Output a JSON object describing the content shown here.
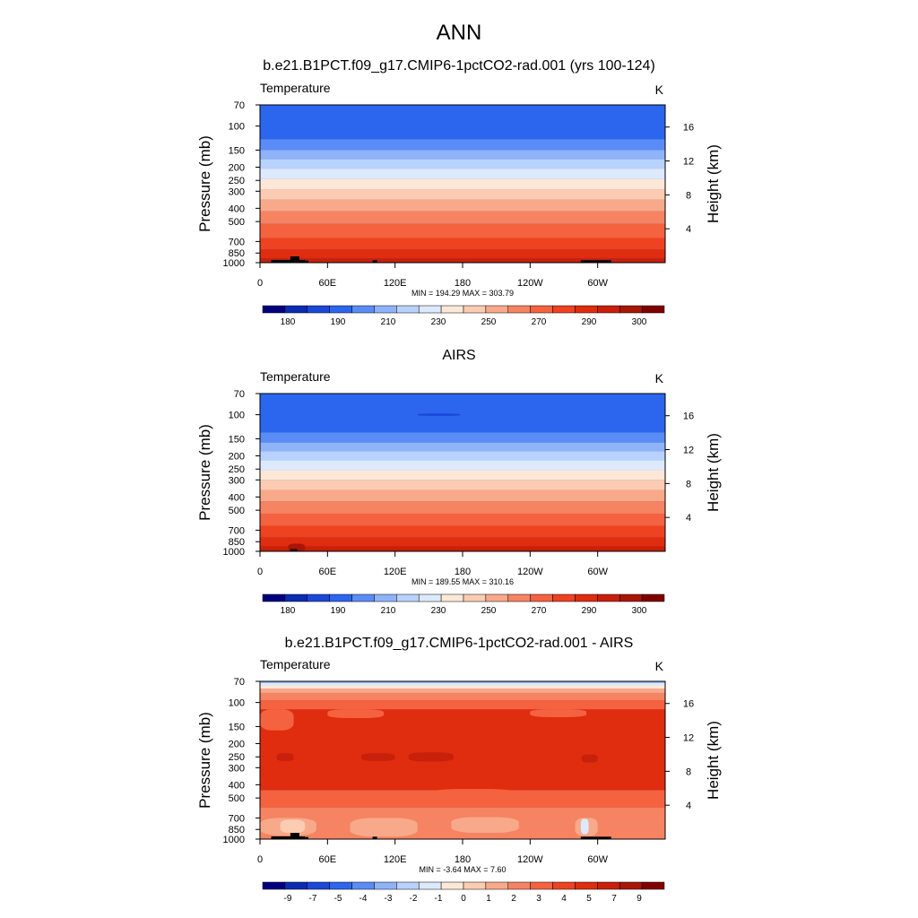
{
  "main_title": "ANN",
  "chart_data": [
    {
      "type": "heatmap",
      "title": "b.e21.B1PCT.f09_g17.CMIP6-1pctCO2-rad.001 (yrs 100-124)",
      "left_label": "Temperature",
      "units": "K",
      "ylabel": "Pressure (mb)",
      "y2label": "Height (km)",
      "stats": "MIN = 194.29  MAX = 303.79",
      "x_ticks": [
        {
          "lon": 0,
          "label": "0"
        },
        {
          "lon": 60,
          "label": "60E"
        },
        {
          "lon": 120,
          "label": "120E"
        },
        {
          "lon": 180,
          "label": "180"
        },
        {
          "lon": 240,
          "label": "120W"
        },
        {
          "lon": 300,
          "label": "60W"
        }
      ],
      "xlim": [
        0,
        360
      ],
      "p_ticks": [
        {
          "p": 70,
          "label": "70"
        },
        {
          "p": 100,
          "label": "100"
        },
        {
          "p": 150,
          "label": "150"
        },
        {
          "p": 200,
          "label": "200"
        },
        {
          "p": 250,
          "label": "250"
        },
        {
          "p": 300,
          "label": "300"
        },
        {
          "p": 400,
          "label": "400"
        },
        {
          "p": 500,
          "label": "500"
        },
        {
          "p": 700,
          "label": "700"
        },
        {
          "p": 850,
          "label": "850"
        },
        {
          "p": 1000,
          "label": "1000"
        }
      ],
      "h_ticks": [
        {
          "km": 4,
          "label": "4"
        },
        {
          "km": 8,
          "label": "8"
        },
        {
          "km": 12,
          "label": "12"
        },
        {
          "km": 16,
          "label": "16"
        }
      ],
      "plim": [
        70,
        1000
      ],
      "colors": [
        "#00007f",
        "#0a2cb3",
        "#1a48d8",
        "#2c66ee",
        "#5a8cf6",
        "#8fb3f9",
        "#b9d2fb",
        "#dde9fc",
        "#fde8d7",
        "#fbccb2",
        "#f8a98a",
        "#f68361",
        "#f4623f",
        "#ee4220",
        "#e02c0f",
        "#c8200a",
        "#a81606",
        "#800000"
      ],
      "cbar_labels": [
        "180",
        "190",
        "210",
        "230",
        "250",
        "270",
        "290",
        "300"
      ],
      "bands": [
        {
          "p_top": 70,
          "p_bottom": 100,
          "color_index": 3
        },
        {
          "p_top": 100,
          "p_bottom": 125,
          "color_index": 3
        },
        {
          "p_top": 125,
          "p_bottom": 150,
          "color_index": 4
        },
        {
          "p_top": 150,
          "p_bottom": 175,
          "color_index": 5
        },
        {
          "p_top": 175,
          "p_bottom": 205,
          "color_index": 6
        },
        {
          "p_top": 205,
          "p_bottom": 245,
          "color_index": 7
        },
        {
          "p_top": 245,
          "p_bottom": 290,
          "color_index": 8
        },
        {
          "p_top": 290,
          "p_bottom": 345,
          "color_index": 9
        },
        {
          "p_top": 345,
          "p_bottom": 420,
          "color_index": 10
        },
        {
          "p_top": 420,
          "p_bottom": 520,
          "color_index": 11
        },
        {
          "p_top": 520,
          "p_bottom": 660,
          "color_index": 12
        },
        {
          "p_top": 660,
          "p_bottom": 800,
          "color_index": 13
        },
        {
          "p_top": 800,
          "p_bottom": 930,
          "color_index": 14
        },
        {
          "p_top": 930,
          "p_bottom": 1000,
          "color_index": 15
        }
      ],
      "patches": [
        {
          "lon0": 80,
          "lon1": 160,
          "p_top": 100,
          "p_bottom": 112,
          "color_index": 3
        }
      ],
      "topography": [
        {
          "lon0": 10,
          "lon1": 40,
          "p_top": 955
        },
        {
          "lon0": 27,
          "lon1": 35,
          "p_top": 900
        },
        {
          "lon0": 40,
          "lon1": 43,
          "p_top": 965
        },
        {
          "lon0": 100,
          "lon1": 104,
          "p_top": 960
        },
        {
          "lon0": 285,
          "lon1": 312,
          "p_top": 960
        }
      ]
    },
    {
      "type": "heatmap",
      "title": "AIRS",
      "left_label": "Temperature",
      "units": "K",
      "ylabel": "Pressure (mb)",
      "y2label": "Height (km)",
      "stats": "MIN = 189.55  MAX = 310.16",
      "x_ticks": [
        {
          "lon": 0,
          "label": "0"
        },
        {
          "lon": 60,
          "label": "60E"
        },
        {
          "lon": 120,
          "label": "120E"
        },
        {
          "lon": 180,
          "label": "180"
        },
        {
          "lon": 240,
          "label": "120W"
        },
        {
          "lon": 300,
          "label": "60W"
        }
      ],
      "xlim": [
        0,
        360
      ],
      "p_ticks": [
        {
          "p": 70,
          "label": "70"
        },
        {
          "p": 100,
          "label": "100"
        },
        {
          "p": 150,
          "label": "150"
        },
        {
          "p": 200,
          "label": "200"
        },
        {
          "p": 250,
          "label": "250"
        },
        {
          "p": 300,
          "label": "300"
        },
        {
          "p": 400,
          "label": "400"
        },
        {
          "p": 500,
          "label": "500"
        },
        {
          "p": 700,
          "label": "700"
        },
        {
          "p": 850,
          "label": "850"
        },
        {
          "p": 1000,
          "label": "1000"
        }
      ],
      "h_ticks": [
        {
          "km": 4,
          "label": "4"
        },
        {
          "km": 8,
          "label": "8"
        },
        {
          "km": 12,
          "label": "12"
        },
        {
          "km": 16,
          "label": "16"
        }
      ],
      "plim": [
        70,
        1000
      ],
      "colors": [
        "#00007f",
        "#0a2cb3",
        "#1a48d8",
        "#2c66ee",
        "#5a8cf6",
        "#8fb3f9",
        "#b9d2fb",
        "#dde9fc",
        "#fde8d7",
        "#fbccb2",
        "#f8a98a",
        "#f68361",
        "#f4623f",
        "#ee4220",
        "#e02c0f",
        "#c8200a",
        "#a81606",
        "#800000"
      ],
      "cbar_labels": [
        "180",
        "190",
        "210",
        "230",
        "250",
        "270",
        "290",
        "300"
      ],
      "bands": [
        {
          "p_top": 70,
          "p_bottom": 105,
          "color_index": 3
        },
        {
          "p_top": 105,
          "p_bottom": 135,
          "color_index": 3
        },
        {
          "p_top": 135,
          "p_bottom": 160,
          "color_index": 4
        },
        {
          "p_top": 160,
          "p_bottom": 185,
          "color_index": 5
        },
        {
          "p_top": 185,
          "p_bottom": 215,
          "color_index": 6
        },
        {
          "p_top": 215,
          "p_bottom": 255,
          "color_index": 7
        },
        {
          "p_top": 255,
          "p_bottom": 300,
          "color_index": 8
        },
        {
          "p_top": 300,
          "p_bottom": 355,
          "color_index": 9
        },
        {
          "p_top": 355,
          "p_bottom": 430,
          "color_index": 10
        },
        {
          "p_top": 430,
          "p_bottom": 530,
          "color_index": 11
        },
        {
          "p_top": 530,
          "p_bottom": 650,
          "color_index": 12
        },
        {
          "p_top": 650,
          "p_bottom": 790,
          "color_index": 13
        },
        {
          "p_top": 790,
          "p_bottom": 920,
          "color_index": 14
        },
        {
          "p_top": 920,
          "p_bottom": 1000,
          "color_index": 15
        }
      ],
      "patches": [
        {
          "lon0": 140,
          "lon1": 178,
          "p_top": 98,
          "p_bottom": 102,
          "color_index": 2
        },
        {
          "lon0": 25,
          "lon1": 40,
          "p_top": 880,
          "p_bottom": 1000,
          "color_index": 16
        }
      ],
      "topography": [
        {
          "lon0": 27,
          "lon1": 33,
          "p_top": 965
        }
      ]
    },
    {
      "type": "heatmap",
      "title": "b.e21.B1PCT.f09_g17.CMIP6-1pctCO2-rad.001 - AIRS",
      "left_label": "Temperature",
      "units": "K",
      "ylabel": "Pressure (mb)",
      "y2label": "Height (km)",
      "stats": "MIN =  -3.64  MAX =   7.60",
      "x_ticks": [
        {
          "lon": 0,
          "label": "0"
        },
        {
          "lon": 60,
          "label": "60E"
        },
        {
          "lon": 120,
          "label": "120E"
        },
        {
          "lon": 180,
          "label": "180"
        },
        {
          "lon": 240,
          "label": "120W"
        },
        {
          "lon": 300,
          "label": "60W"
        }
      ],
      "xlim": [
        0,
        360
      ],
      "p_ticks": [
        {
          "p": 70,
          "label": "70"
        },
        {
          "p": 100,
          "label": "100"
        },
        {
          "p": 150,
          "label": "150"
        },
        {
          "p": 200,
          "label": "200"
        },
        {
          "p": 250,
          "label": "250"
        },
        {
          "p": 300,
          "label": "300"
        },
        {
          "p": 400,
          "label": "400"
        },
        {
          "p": 500,
          "label": "500"
        },
        {
          "p": 700,
          "label": "700"
        },
        {
          "p": 850,
          "label": "850"
        },
        {
          "p": 1000,
          "label": "1000"
        }
      ],
      "h_ticks": [
        {
          "km": 4,
          "label": "4"
        },
        {
          "km": 8,
          "label": "8"
        },
        {
          "km": 12,
          "label": "12"
        },
        {
          "km": 16,
          "label": "16"
        }
      ],
      "plim": [
        70,
        1000
      ],
      "colors": [
        "#00007f",
        "#0a2cb3",
        "#1a48d8",
        "#2c66ee",
        "#5a8cf6",
        "#8fb3f9",
        "#b9d2fb",
        "#dde9fc",
        "#fde8d7",
        "#fbccb2",
        "#f8a98a",
        "#f68361",
        "#f4623f",
        "#ee4220",
        "#e02c0f",
        "#c8200a",
        "#a81606",
        "#800000"
      ],
      "cbar_labels": [
        "-9",
        "-7",
        "-5",
        "-4",
        "-3",
        "-2",
        "-1",
        "0",
        "1",
        "2",
        "3",
        "4",
        "5",
        "7",
        "9"
      ],
      "bands": [
        {
          "p_top": 70,
          "p_bottom": 72,
          "color_index": 5
        },
        {
          "p_top": 72,
          "p_bottom": 75,
          "color_index": 7
        },
        {
          "p_top": 75,
          "p_bottom": 79,
          "color_index": 8
        },
        {
          "p_top": 79,
          "p_bottom": 85,
          "color_index": 10
        },
        {
          "p_top": 85,
          "p_bottom": 96,
          "color_index": 11
        },
        {
          "p_top": 96,
          "p_bottom": 112,
          "color_index": 12
        },
        {
          "p_top": 112,
          "p_bottom": 440,
          "color_index": 14
        },
        {
          "p_top": 440,
          "p_bottom": 590,
          "color_index": 12
        },
        {
          "p_top": 590,
          "p_bottom": 760,
          "color_index": 11
        },
        {
          "p_top": 760,
          "p_bottom": 1000,
          "color_index": 11
        }
      ],
      "patches": [
        {
          "lon0": 0,
          "lon1": 30,
          "p_top": 112,
          "p_bottom": 160,
          "color_index": 12
        },
        {
          "lon0": 60,
          "lon1": 110,
          "p_top": 112,
          "p_bottom": 130,
          "color_index": 12
        },
        {
          "lon0": 240,
          "lon1": 290,
          "p_top": 112,
          "p_bottom": 128,
          "color_index": 12
        },
        {
          "lon0": 15,
          "lon1": 30,
          "p_top": 235,
          "p_bottom": 268,
          "color_index": 15
        },
        {
          "lon0": 90,
          "lon1": 120,
          "p_top": 235,
          "p_bottom": 268,
          "color_index": 15
        },
        {
          "lon0": 132,
          "lon1": 172,
          "p_top": 232,
          "p_bottom": 270,
          "color_index": 15
        },
        {
          "lon0": 286,
          "lon1": 300,
          "p_top": 240,
          "p_bottom": 275,
          "color_index": 15
        },
        {
          "lon0": 150,
          "lon1": 230,
          "p_top": 430,
          "p_bottom": 520,
          "color_index": 12
        },
        {
          "lon0": 80,
          "lon1": 140,
          "p_top": 700,
          "p_bottom": 960,
          "color_index": 10
        },
        {
          "lon0": 170,
          "lon1": 230,
          "p_top": 690,
          "p_bottom": 900,
          "color_index": 10
        },
        {
          "lon0": 0,
          "lon1": 50,
          "p_top": 700,
          "p_bottom": 940,
          "color_index": 10
        },
        {
          "lon0": 280,
          "lon1": 300,
          "p_top": 700,
          "p_bottom": 950,
          "color_index": 10
        },
        {
          "lon0": 18,
          "lon1": 40,
          "p_top": 720,
          "p_bottom": 900,
          "color_index": 9
        },
        {
          "lon0": 285,
          "lon1": 292,
          "p_top": 710,
          "p_bottom": 920,
          "color_index": 7
        }
      ],
      "topography": [
        {
          "lon0": 10,
          "lon1": 40,
          "p_top": 955
        },
        {
          "lon0": 27,
          "lon1": 35,
          "p_top": 900
        },
        {
          "lon0": 40,
          "lon1": 43,
          "p_top": 965
        },
        {
          "lon0": 100,
          "lon1": 104,
          "p_top": 960
        },
        {
          "lon0": 285,
          "lon1": 312,
          "p_top": 960
        }
      ]
    }
  ]
}
